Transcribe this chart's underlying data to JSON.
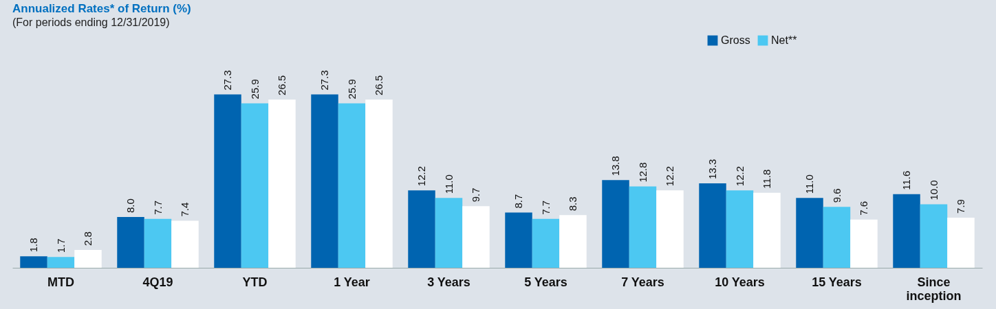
{
  "chart_data": {
    "type": "bar",
    "title": "Annualized Rates* of Return (%)",
    "subtitle": "(For periods ending 12/31/2019)",
    "categories": [
      "MTD",
      "4Q19",
      "YTD",
      "1 Year",
      "3 Years",
      "5 Years",
      "7 Years",
      "10 Years",
      "15 Years",
      "Since inception"
    ],
    "series": [
      {
        "name": "Gross",
        "color": "#0064b0",
        "values": [
          1.8,
          8.0,
          27.3,
          27.3,
          12.2,
          8.7,
          13.8,
          13.3,
          11.0,
          11.6
        ],
        "value_labels": [
          "1.8",
          "8.0",
          "27.3",
          "27.3",
          "12.2",
          "8.7",
          "13.8",
          "13.3",
          "11.0",
          "11.6"
        ]
      },
      {
        "name": "Net**",
        "color": "#4cc8f2",
        "values": [
          1.7,
          7.7,
          25.9,
          25.9,
          11.0,
          7.7,
          12.8,
          12.2,
          9.6,
          10.0
        ],
        "value_labels": [
          "1.7",
          "7.7",
          "25.9",
          "25.9",
          "11.0",
          "7.7",
          "12.8",
          "12.2",
          "9.6",
          "10.0"
        ]
      },
      {
        "color": "#ffffff",
        "values": [
          2.8,
          7.4,
          26.5,
          26.5,
          9.7,
          8.3,
          12.2,
          11.8,
          7.6,
          7.9
        ],
        "value_labels": [
          "2.8",
          "7.4",
          "26.5",
          "26.5",
          "9.7",
          "8.3",
          "12.2",
          "11.8",
          "7.6",
          "7.9"
        ]
      }
    ],
    "legend": "top right",
    "grid": false
  }
}
